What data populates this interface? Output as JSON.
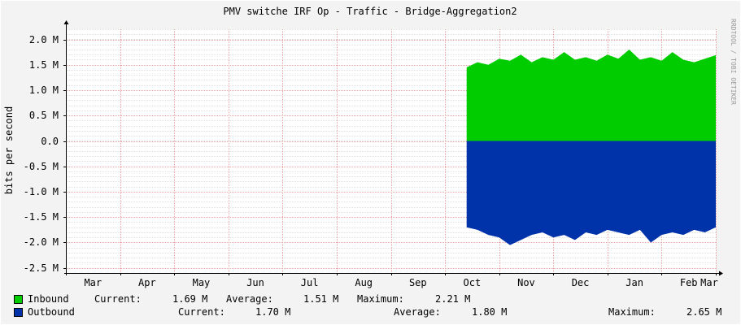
{
  "chart_data": {
    "type": "area",
    "title": "PMV switche IRF Op - Traffic - Bridge-Aggregation2",
    "ylabel": "bits per second",
    "side_credit": "RRDTOOL / TOBI OETIKER",
    "ylim": [
      -2.6,
      2.2
    ],
    "y_ticks": [
      {
        "value": 2.0,
        "label": "2.0 M"
      },
      {
        "value": 1.5,
        "label": "1.5 M"
      },
      {
        "value": 1.0,
        "label": "1.0 M"
      },
      {
        "value": 0.5,
        "label": "0.5 M"
      },
      {
        "value": 0.0,
        "label": "0.0"
      },
      {
        "value": -0.5,
        "label": "-0.5 M"
      },
      {
        "value": -1.0,
        "label": "-1.0 M"
      },
      {
        "value": -1.5,
        "label": "-1.5 M"
      },
      {
        "value": -2.0,
        "label": "-2.0 M"
      },
      {
        "value": -2.5,
        "label": "-2.5 M"
      }
    ],
    "months": [
      "Mar",
      "Apr",
      "May",
      "Jun",
      "Jul",
      "Aug",
      "Sep",
      "Oct",
      "Nov",
      "Dec",
      "Jan",
      "Feb",
      "Mar"
    ],
    "x_unit": "months from first Mar boundary",
    "data_start_month": 7.4,
    "x_max": 12.0,
    "series": [
      {
        "name": "Inbound",
        "color": "#00cc00",
        "sign": 1,
        "x": [
          7.4,
          7.6,
          7.8,
          8.0,
          8.2,
          8.4,
          8.6,
          8.8,
          9.0,
          9.2,
          9.4,
          9.6,
          9.8,
          10.0,
          10.2,
          10.4,
          10.6,
          10.8,
          11.0,
          11.2,
          11.4,
          11.6,
          11.8,
          12.0
        ],
        "values": [
          1.45,
          1.55,
          1.5,
          1.62,
          1.58,
          1.7,
          1.55,
          1.65,
          1.6,
          1.75,
          1.6,
          1.65,
          1.58,
          1.7,
          1.62,
          1.8,
          1.6,
          1.65,
          1.58,
          1.75,
          1.6,
          1.55,
          1.62,
          1.69
        ],
        "current": "1.69 M",
        "average": "1.51 M",
        "maximum": "2.21 M"
      },
      {
        "name": "Outbound",
        "color": "#0033aa",
        "sign": -1,
        "x": [
          7.4,
          7.6,
          7.8,
          8.0,
          8.2,
          8.4,
          8.6,
          8.8,
          9.0,
          9.2,
          9.4,
          9.6,
          9.8,
          10.0,
          10.2,
          10.4,
          10.6,
          10.8,
          11.0,
          11.2,
          11.4,
          11.6,
          11.8,
          12.0
        ],
        "values": [
          1.7,
          1.75,
          1.85,
          1.9,
          2.05,
          1.95,
          1.85,
          1.8,
          1.9,
          1.85,
          1.95,
          1.8,
          1.85,
          1.75,
          1.8,
          1.85,
          1.75,
          2.0,
          1.85,
          1.8,
          1.85,
          1.75,
          1.8,
          1.7
        ],
        "current": "1.70 M",
        "average": "1.80 M",
        "maximum": "2.65 M"
      }
    ],
    "legend_labels": {
      "current": "Current:",
      "average": "Average:",
      "maximum": "Maximum:"
    },
    "grid": true
  }
}
